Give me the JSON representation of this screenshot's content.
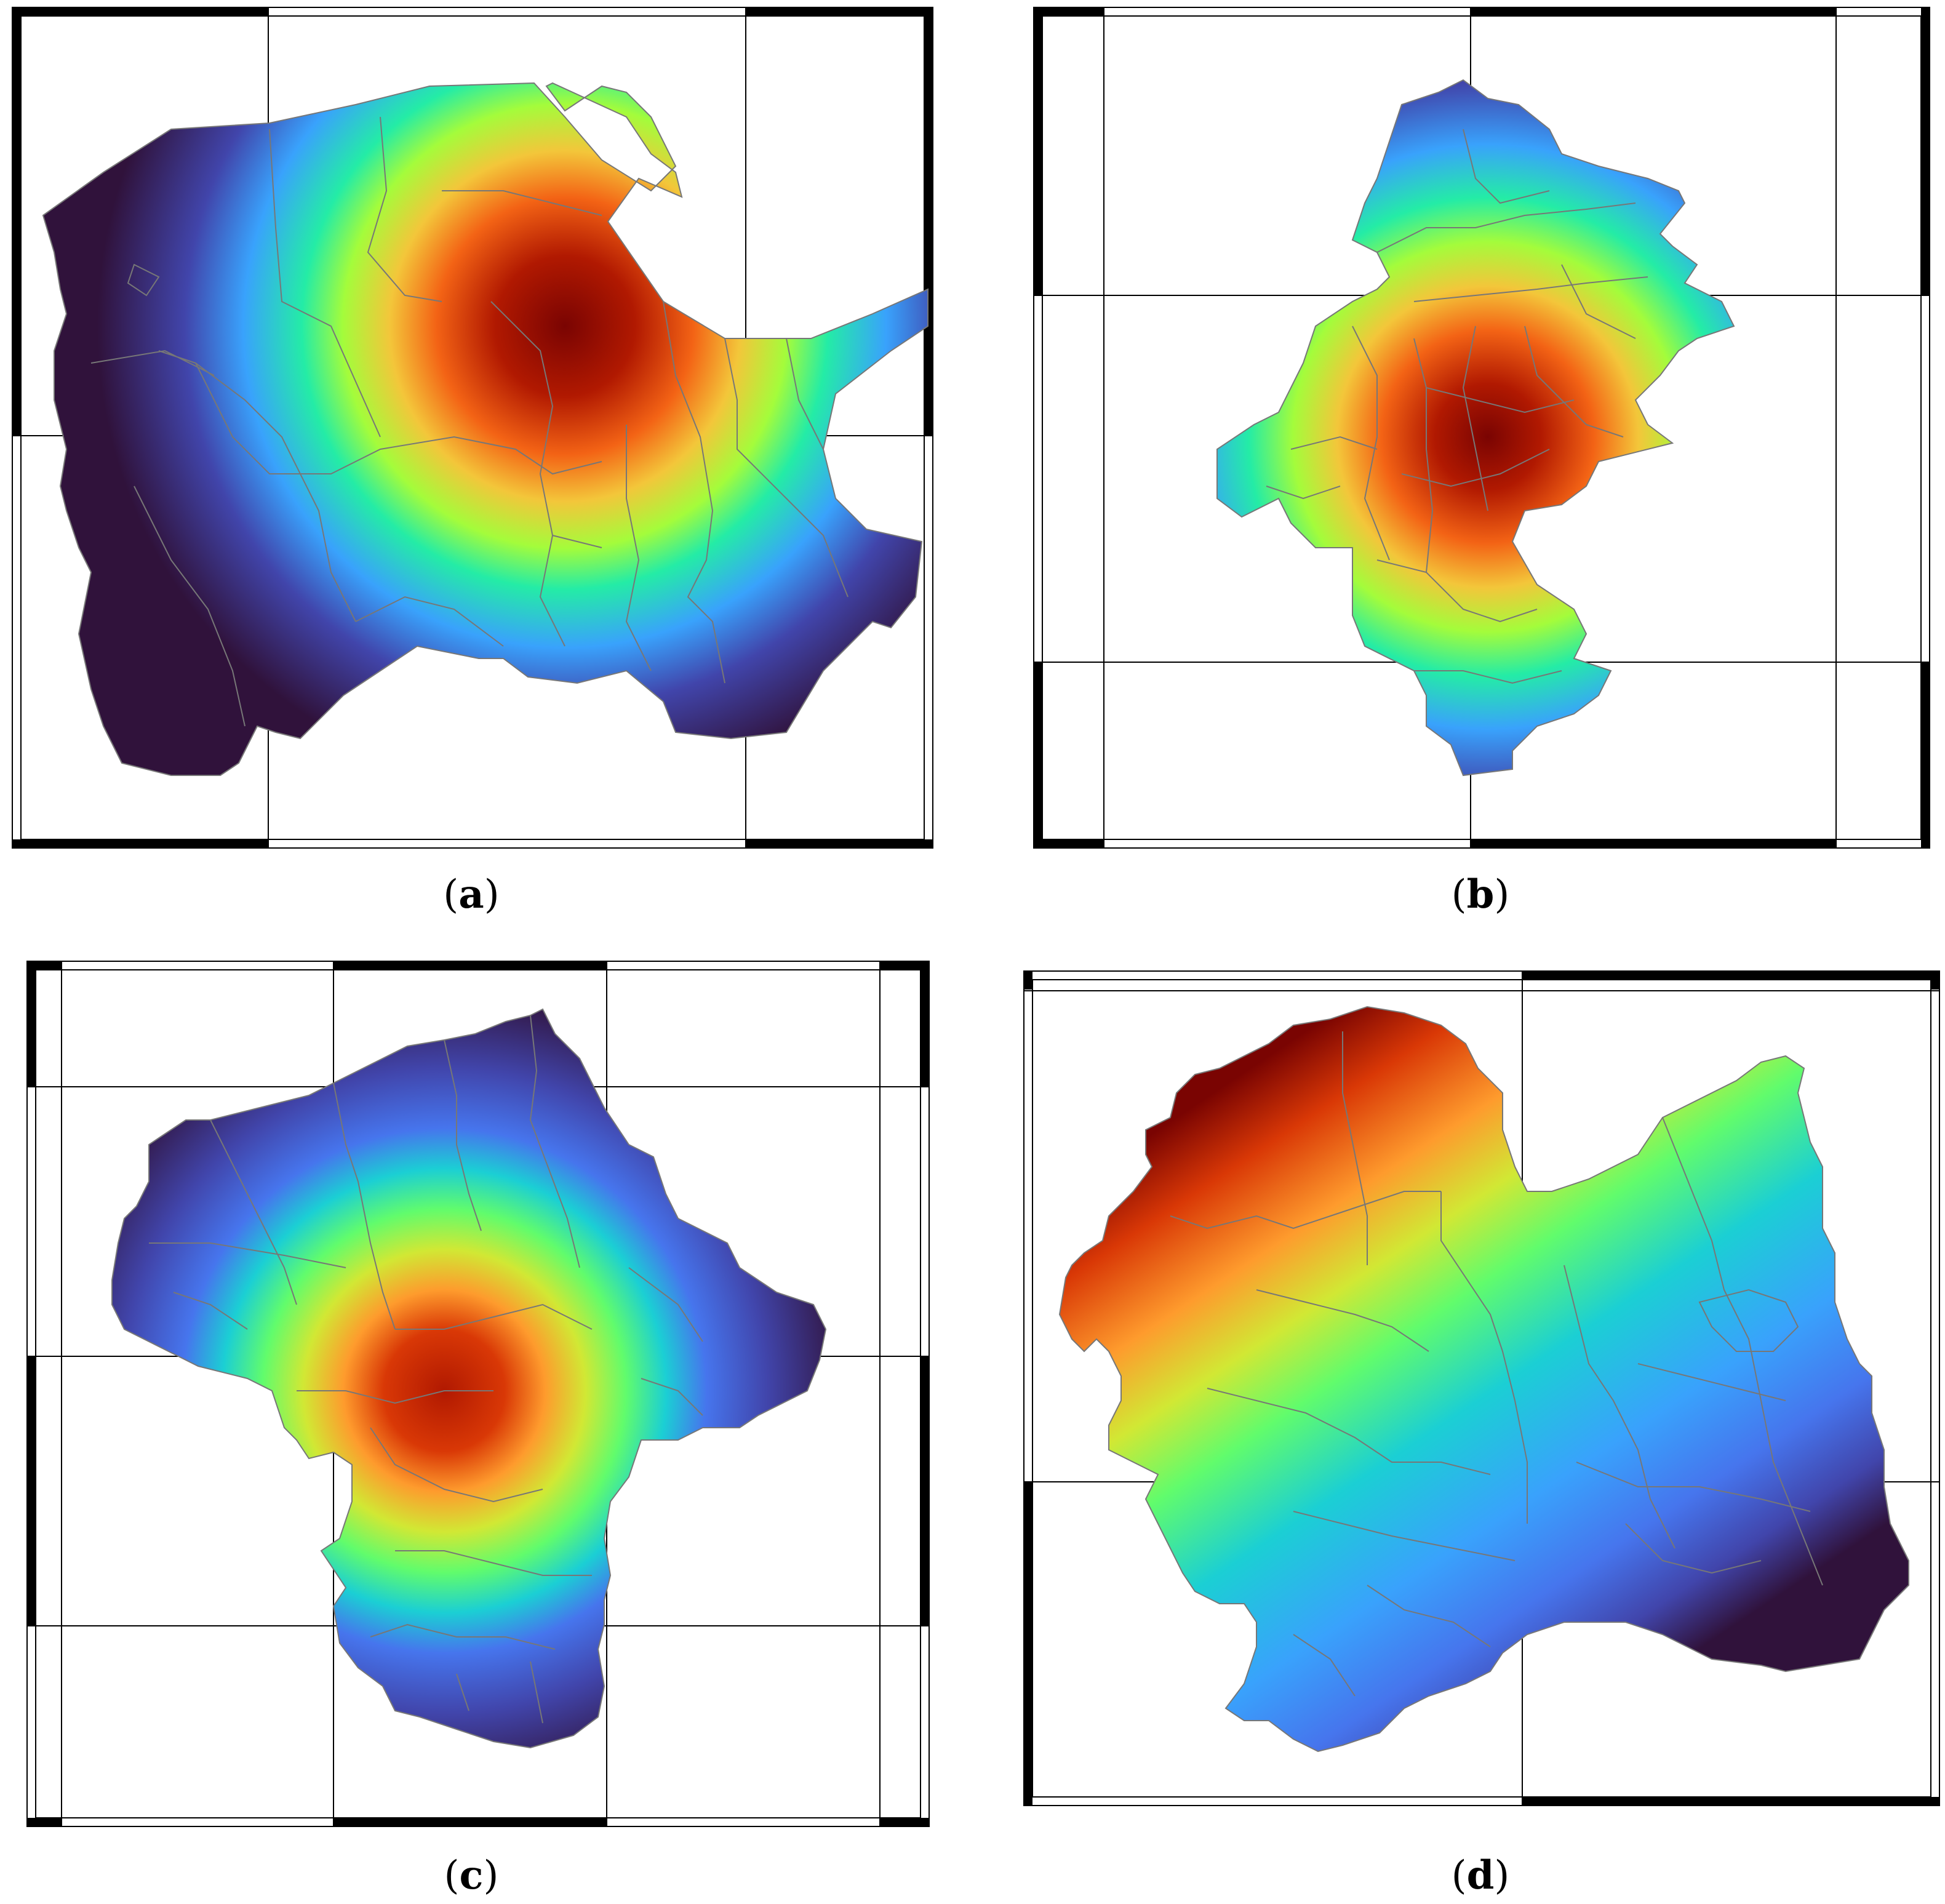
{
  "figure": {
    "panels": [
      {
        "id": "a",
        "caption_open": "(",
        "caption_letter": "a",
        "caption_close": ")",
        "description_colors": {
          "high": "#7a0000",
          "mid": "#20e000",
          "low": "#2a0a4a"
        }
      },
      {
        "id": "b",
        "caption_open": "(",
        "caption_letter": "b",
        "caption_close": ")",
        "description_colors": {
          "high": "#7a0000",
          "mid": "#20e000",
          "low": "#3a2a9a"
        }
      },
      {
        "id": "c",
        "caption_open": "(",
        "caption_letter": "c",
        "caption_close": ")",
        "description_colors": {
          "high": "#8a0000",
          "mid": "#40e010",
          "low": "#2a0a4a"
        }
      },
      {
        "id": "d",
        "caption_open": "(",
        "caption_letter": "d",
        "caption_close": ")",
        "description_colors": {
          "high": "#8a0000",
          "mid": "#10e060",
          "low": "#2a0a4a"
        }
      }
    ],
    "colormap": [
      "#30123b",
      "#4145ab",
      "#4675ed",
      "#39a2fc",
      "#1bcfd4",
      "#24eca6",
      "#61fc6c",
      "#a4fc3b",
      "#d1e834",
      "#f3c63a",
      "#fe9b2d",
      "#f36315",
      "#d93806",
      "#b11901",
      "#7a0402"
    ]
  }
}
